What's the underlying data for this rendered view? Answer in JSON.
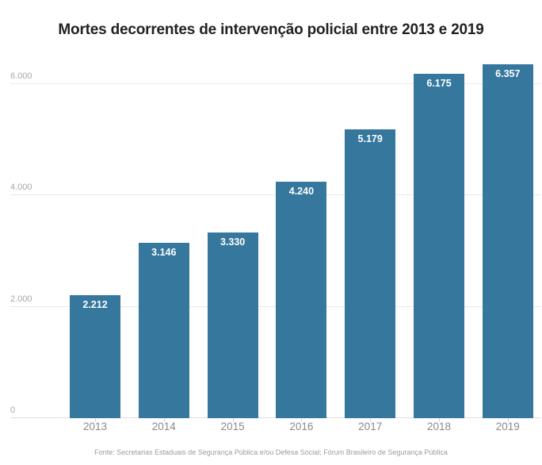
{
  "chart_data": {
    "type": "bar",
    "title": "Mortes decorrentes de intervenção policial entre 2013 e 2019",
    "categories": [
      "2013",
      "2014",
      "2015",
      "2016",
      "2017",
      "2018",
      "2019"
    ],
    "values": [
      2212,
      3146,
      3330,
      4240,
      5179,
      6175,
      6357
    ],
    "value_labels": [
      "2.212",
      "3.146",
      "3.330",
      "4.240",
      "5.179",
      "6.175",
      "6.357"
    ],
    "xlabel": "",
    "ylabel": "",
    "ylim": [
      0,
      6650
    ],
    "y_ticks": [
      {
        "value": 6000,
        "label": "6.000"
      },
      {
        "value": 4000,
        "label": "4.000"
      },
      {
        "value": 2000,
        "label": "2.000"
      },
      {
        "value": 0,
        "label": "0"
      }
    ],
    "grid": true,
    "legend": false,
    "bar_color": "#36779e",
    "source_note": "Fonte: Secretarias Estaduais de Segurança Pública e/ou Defesa Social; Fórum Brasileiro de Segurança Pública"
  },
  "colors": {
    "background": "#ffffff",
    "bar": "#36779e",
    "title_text": "#222222",
    "value_label_text": "#ffffff",
    "y_tick_text": "#a6a6a6",
    "x_tick_text": "#8a8a8a",
    "gridline": "#e9e9e9",
    "baseline": "#dedede",
    "source_text": "#9c9c9c"
  }
}
